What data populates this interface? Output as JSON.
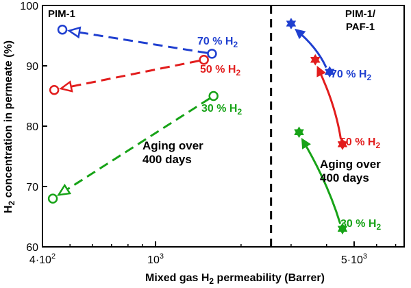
{
  "colors": {
    "70": "#1f3fd0",
    "50": "#e21d1d",
    "30": "#17a317"
  },
  "chart_data": [
    {
      "type": "scatter",
      "panel": "left",
      "title": "PIM-1",
      "xscale": "log",
      "ylim": [
        60,
        100
      ],
      "series": [
        {
          "name": "70 % H2",
          "label": "70 % H",
          "label_sub": "2",
          "color_key": "70",
          "points": [
            {
              "x": 1580,
              "y": 92,
              "role": "start"
            },
            {
              "x": 470,
              "y": 96,
              "role": "end"
            }
          ]
        },
        {
          "name": "50 % H2",
          "label": "50 % H",
          "label_sub": "2",
          "color_key": "50",
          "points": [
            {
              "x": 1480,
              "y": 91,
              "role": "start"
            },
            {
              "x": 440,
              "y": 86,
              "role": "end"
            }
          ]
        },
        {
          "name": "30 % H2",
          "label": "30 % H",
          "label_sub": "2",
          "color_key": "30",
          "points": [
            {
              "x": 1600,
              "y": 85,
              "role": "start"
            },
            {
              "x": 435,
              "y": 68,
              "role": "end"
            }
          ]
        }
      ],
      "annotation": [
        "Aging over",
        "400 days"
      ],
      "marker": "open-circle",
      "connector": "dashed-arrow"
    },
    {
      "type": "scatter",
      "panel": "right",
      "title": [
        "PIM-1/",
        "PAF-1"
      ],
      "xscale": "log",
      "ylim": [
        60,
        100
      ],
      "series": [
        {
          "name": "70 % H2",
          "label": "70 % H",
          "label_sub": "2",
          "color_key": "70",
          "points": [
            {
              "x": 4100,
              "y": 89,
              "role": "start"
            },
            {
              "x": 3000,
              "y": 97,
              "role": "end"
            }
          ]
        },
        {
          "name": "50 % H2",
          "label": "50 % H",
          "label_sub": "2",
          "color_key": "50",
          "points": [
            {
              "x": 4550,
              "y": 77,
              "role": "start"
            },
            {
              "x": 3650,
              "y": 91,
              "role": "end"
            }
          ]
        },
        {
          "name": "30 % H2",
          "label": "30 % H",
          "label_sub": "2",
          "color_key": "30",
          "points": [
            {
              "x": 4550,
              "y": 63,
              "role": "start"
            },
            {
              "x": 3200,
              "y": 79,
              "role": "end"
            }
          ]
        }
      ],
      "annotation": [
        "Aging over",
        "400 days"
      ],
      "marker": "filled-star",
      "connector": "solid-arrow"
    }
  ],
  "axes": {
    "xlabel": {
      "pre": "Mixed gas H",
      "sub": "2",
      "post": " permeability (Barrer)"
    },
    "ylabel": {
      "pre": "H",
      "sub": "2",
      "post": " concentration in permeate (%)"
    },
    "xlim": [
      400,
      7500
    ],
    "ylim": [
      60,
      100
    ],
    "yticks": [
      60,
      70,
      80,
      90,
      100
    ],
    "xticks_labeled": [
      {
        "value": 400,
        "base": "4·10",
        "exp": "2"
      },
      {
        "value": 1000,
        "base": "10",
        "exp": "3"
      },
      {
        "value": 5000,
        "base": "5·10",
        "exp": "3"
      }
    ],
    "xticks_minor": [
      500,
      600,
      700,
      800,
      900,
      2000,
      3000,
      4000,
      6000,
      7000
    ],
    "divider_x": 2550,
    "grid": false
  }
}
